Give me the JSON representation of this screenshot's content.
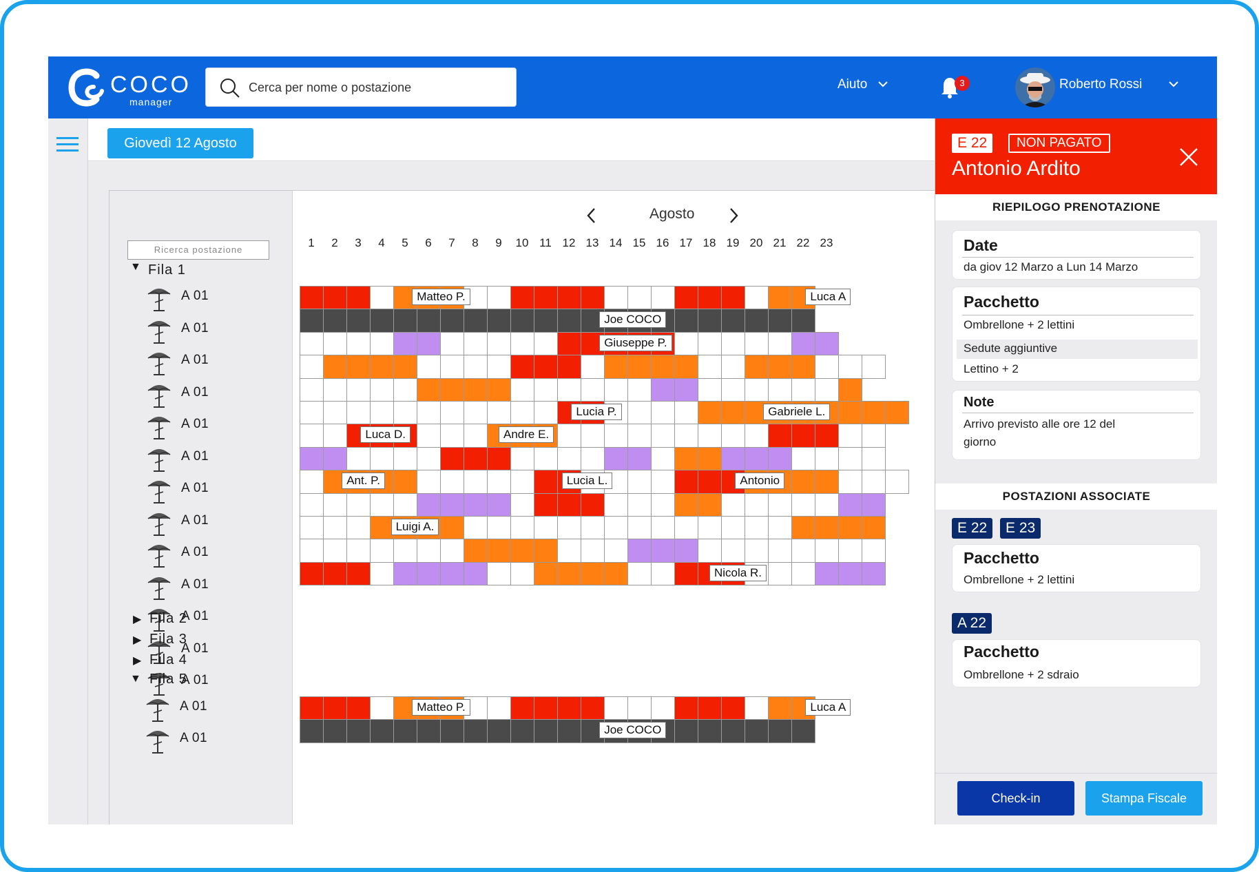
{
  "brand": {
    "name": "COCO",
    "sub": "manager"
  },
  "search": {
    "placeholder": "Cerca per nome o postazione"
  },
  "header": {
    "help": "Aiuto",
    "notifications": "3",
    "user": "Roberto Rossi"
  },
  "datebar": {
    "date": "Giovedì 12 Agosto"
  },
  "tree": {
    "search_placeholder": "Ricerca postazione",
    "fila1": "Fila 1",
    "seat_label": "A 01",
    "fila2": "Fila 2",
    "fila3": "Fila 3",
    "fila4": "Fila 4",
    "fila5": "Fila 5"
  },
  "calendar": {
    "month": "Agosto",
    "days": [
      "1",
      "2",
      "3",
      "4",
      "5",
      "6",
      "7",
      "8",
      "9",
      "10",
      "11",
      "12",
      "13",
      "14",
      "15",
      "16",
      "17",
      "18",
      "19",
      "20",
      "21",
      "22",
      "23"
    ],
    "legend_colors": {
      "r": "#f21f00",
      "o": "#ff7f10",
      "p": "#c08ef0",
      "d": "#4a4a4a",
      "w": "#ffffff"
    },
    "rows": [
      "rrrwooowwrrrrwwwrrrwoo",
      "dddddddddddddddddddddd",
      "wwwwppwwwwwrrrrrwwwwwpp",
      "woooowwwwrrrwoooowwooowww",
      "wwwwwoooowwwwwwppwwwwwwo",
      "wwwwwwwwwwwrrwwwwooooooooo",
      "wwrrrwwwooowwwwwwwwwrrrww",
      "ppwwwwrrrwwwwppwoopppwwww",
      "woooowwwwwrrwwwwrrroooowww",
      "wwwwwppppwrrrwwwoowwwwwpp",
      "wwwoooowwwwwwwwwwwwwwoooo",
      "wwwwwwwoooowwwpppwwwwwwww",
      "rrrwppppwwoooowwrrrwwwppp"
    ],
    "labels": [
      {
        "row": 0,
        "text": "Matteo P."
      },
      {
        "row": 0,
        "text": "Luca A"
      },
      {
        "row": 1,
        "text": "Joe COCO"
      },
      {
        "row": 2,
        "text": "Giuseppe P."
      },
      {
        "row": 5,
        "text": "Lucia P."
      },
      {
        "row": 5,
        "text": "Gabriele L."
      },
      {
        "row": 6,
        "text": "Luca D."
      },
      {
        "row": 6,
        "text": "Andre E."
      },
      {
        "row": 8,
        "text": "Ant. P."
      },
      {
        "row": 8,
        "text": "Lucia L."
      },
      {
        "row": 8,
        "text": "Antonio"
      },
      {
        "row": 10,
        "text": "Luigi A."
      },
      {
        "row": 12,
        "text": "Nicola R."
      }
    ],
    "fila5_rows": [
      "rrrwooowwrrrrwwwrrrwoo",
      "dddddddddddddddddddddd"
    ],
    "fila5_labels": [
      {
        "row": 0,
        "text": "Matteo P."
      },
      {
        "row": 0,
        "text": "Luca A"
      },
      {
        "row": 1,
        "text": "Joe COCO"
      }
    ]
  },
  "detail": {
    "code": "E 22",
    "status": "NON PAGATO",
    "name": "Antonio Ardito",
    "summary_title": "RIEPILOGO PRENOTAZIONE",
    "date_title": "Date",
    "date_text": "da giov 12 Marzo a Lun 14 Marzo",
    "package_title": "Pacchetto",
    "package_text": "Ombrellone + 2 lettini",
    "extra_title": "Sedute aggiuntive",
    "extra_text": "Lettino + 2",
    "note_title": "Note",
    "note_text": "Arrivo previsto alle ore 12 del giorno",
    "assoc_title": "POSTAZIONI ASSOCIATE",
    "assoc1_tags": [
      "E 22",
      "E 23"
    ],
    "assoc1_pkg_title": "Pacchetto",
    "assoc1_pkg_text": "Ombrellone + 2 lettini",
    "assoc2_tag": "A 22",
    "assoc2_pkg_title": "Pacchetto",
    "assoc2_pkg_text": "Ombrellone + 2 sdraio",
    "checkin": "Check-in",
    "stampa": "Stampa Fiscale"
  }
}
